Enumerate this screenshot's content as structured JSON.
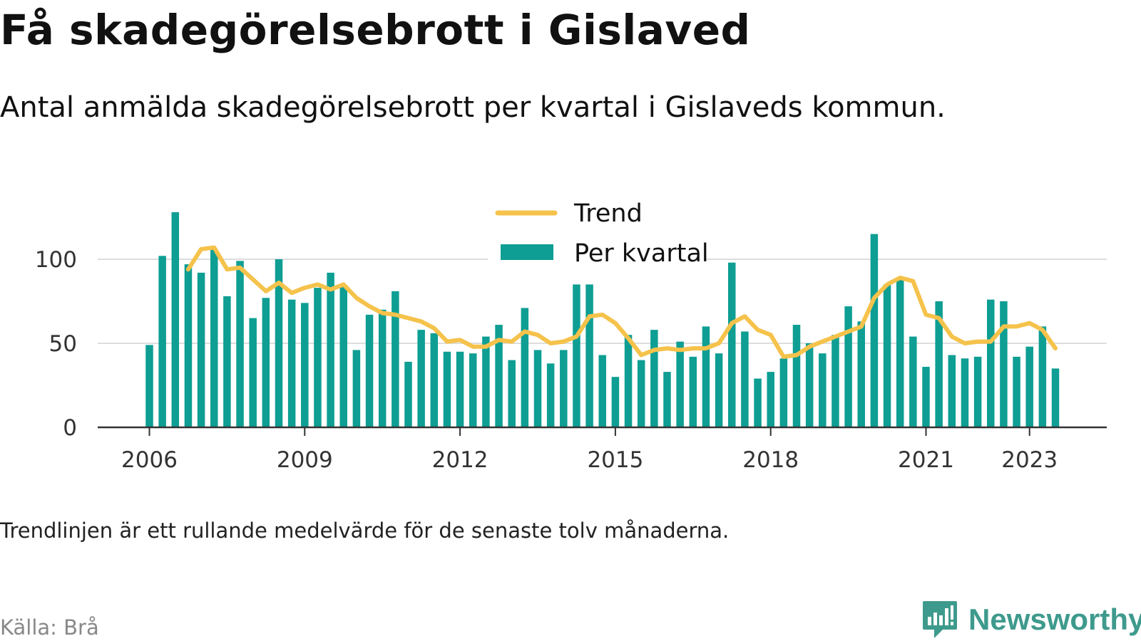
{
  "title": "Få skadegörelsebrott i Gislaved",
  "subtitle": "Antal anmälda skadegörelsebrott per kvartal i Gislaveds kommun.",
  "note": "Trendlinjen är ett rullande medelvärde för de senaste tolv månaderna.",
  "source": "Källa: Brå",
  "brand": "Newsworthy",
  "colors": {
    "bar": "#0e9e93",
    "trend": "#f5c24b",
    "grid": "#dddddd",
    "axis": "#333333"
  },
  "chart_data": {
    "type": "bar",
    "ylim": [
      0,
      130
    ],
    "grid": "horizontal",
    "legend_position": "top-center",
    "x_ticks": [
      {
        "label": "2006",
        "pos": 0
      },
      {
        "label": "2009",
        "pos": 12
      },
      {
        "label": "2012",
        "pos": 24
      },
      {
        "label": "2015",
        "pos": 36
      },
      {
        "label": "2018",
        "pos": 48
      },
      {
        "label": "2021",
        "pos": 60
      },
      {
        "label": "2023",
        "pos": 68
      }
    ],
    "y_ticks": [
      0,
      50,
      100
    ],
    "series": [
      {
        "name": "Per kvartal",
        "type": "bar",
        "values": [
          49,
          102,
          128,
          97,
          92,
          106,
          78,
          99,
          65,
          77,
          100,
          76,
          74,
          83,
          92,
          84,
          46,
          67,
          70,
          81,
          39,
          58,
          56,
          45,
          45,
          44,
          54,
          61,
          40,
          71,
          46,
          38,
          46,
          85,
          85,
          43,
          30,
          55,
          40,
          58,
          33,
          51,
          42,
          60,
          44,
          98,
          57,
          29,
          33,
          41,
          61,
          50,
          44,
          55,
          72,
          63,
          115,
          85,
          88,
          54,
          36,
          75,
          43,
          41,
          42,
          76,
          75,
          42,
          48,
          60,
          35
        ]
      },
      {
        "name": "Trend",
        "type": "line",
        "start": 3,
        "values": [
          94,
          106,
          107,
          94,
          95,
          88,
          81,
          86,
          80,
          83,
          85,
          82,
          85,
          77,
          72,
          68,
          67,
          65,
          63,
          59,
          51,
          52,
          48,
          48,
          52,
          51,
          57,
          55,
          50,
          51,
          54,
          66,
          67,
          62,
          53,
          43,
          46,
          47,
          46,
          47,
          47,
          50,
          62,
          66,
          58,
          55,
          42,
          43,
          48,
          51,
          54,
          57,
          60,
          77,
          85,
          89,
          87,
          67,
          65,
          54,
          50,
          51,
          51,
          60,
          60,
          62,
          58,
          47
        ]
      }
    ]
  }
}
